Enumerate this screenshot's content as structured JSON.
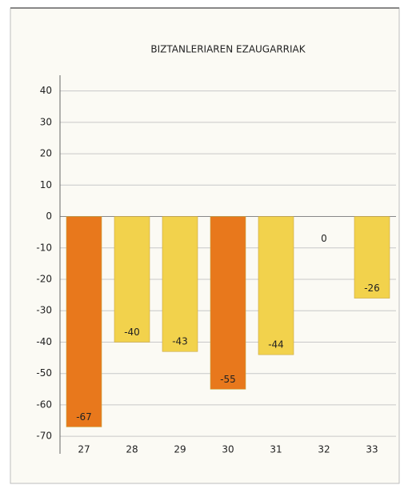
{
  "chart_data": {
    "type": "bar",
    "title": "BIZTANLERIAREN EZAUGARRIAK",
    "categories": [
      "27",
      "28",
      "29",
      "30",
      "31",
      "32",
      "33"
    ],
    "values": [
      -67,
      -40,
      -43,
      -55,
      -44,
      0,
      -26
    ],
    "colors": [
      "#e8781c",
      "#f2d24c",
      "#f2d24c",
      "#e8781c",
      "#f2d24c",
      "#f2d24c",
      "#f2d24c"
    ],
    "ylim": [
      -72,
      45
    ],
    "yticks": [
      -70,
      -60,
      -50,
      -40,
      -30,
      -20,
      -10,
      0,
      10,
      20,
      30,
      40
    ],
    "grid": true
  }
}
